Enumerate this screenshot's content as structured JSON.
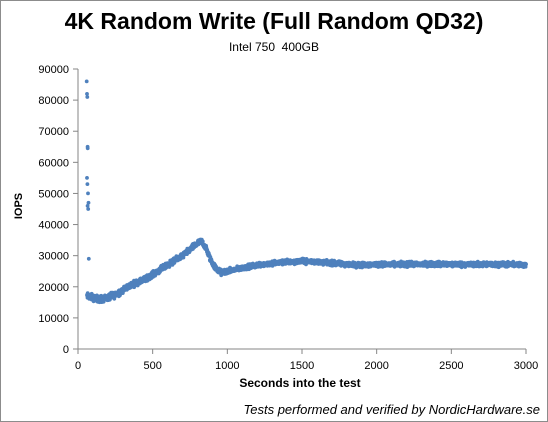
{
  "chart_data": {
    "type": "scatter",
    "title": "4K Random Write (Full Random QD32)",
    "subtitle": "Intel 750  400GB",
    "xlabel": "Seconds into the test",
    "ylabel": "IOPS",
    "xlim": [
      0,
      3000
    ],
    "ylim": [
      0,
      90000
    ],
    "x_ticks": [
      0,
      500,
      1000,
      1500,
      2000,
      2500,
      3000
    ],
    "y_ticks": [
      0,
      10000,
      20000,
      30000,
      40000,
      50000,
      60000,
      70000,
      80000,
      90000
    ],
    "grid": false,
    "legend": "none",
    "marker_color": "#4f81bd",
    "initial_burst": [
      [
        58,
        86000
      ],
      [
        60,
        82000
      ],
      [
        62,
        81000
      ],
      [
        64,
        65000
      ],
      [
        65,
        64500
      ],
      [
        60,
        55000
      ],
      [
        63,
        53000
      ],
      [
        67,
        50000
      ],
      [
        70,
        47000
      ],
      [
        64,
        46000
      ],
      [
        68,
        45000
      ],
      [
        72,
        29000
      ]
    ],
    "trend": [
      [
        60,
        17000
      ],
      [
        100,
        16500
      ],
      [
        150,
        16000
      ],
      [
        200,
        16500
      ],
      [
        250,
        17500
      ],
      [
        300,
        19000
      ],
      [
        350,
        20500
      ],
      [
        400,
        21500
      ],
      [
        450,
        22500
      ],
      [
        500,
        24000
      ],
      [
        550,
        25500
      ],
      [
        600,
        27000
      ],
      [
        650,
        28500
      ],
      [
        700,
        30000
      ],
      [
        750,
        32000
      ],
      [
        800,
        34000
      ],
      [
        830,
        34500
      ],
      [
        860,
        32000
      ],
      [
        880,
        29500
      ],
      [
        900,
        27500
      ],
      [
        930,
        25500
      ],
      [
        960,
        24500
      ],
      [
        1000,
        25000
      ],
      [
        1100,
        26000
      ],
      [
        1200,
        27000
      ],
      [
        1300,
        27500
      ],
      [
        1400,
        28000
      ],
      [
        1500,
        28200
      ],
      [
        1600,
        28000
      ],
      [
        1700,
        27600
      ],
      [
        1800,
        27200
      ],
      [
        1900,
        27000
      ],
      [
        2000,
        27200
      ],
      [
        2200,
        27200
      ],
      [
        2400,
        27300
      ],
      [
        2600,
        27200
      ],
      [
        2800,
        27200
      ],
      [
        3000,
        27100
      ]
    ]
  },
  "footer": "Tests performed and verified by NordicHardware.se"
}
